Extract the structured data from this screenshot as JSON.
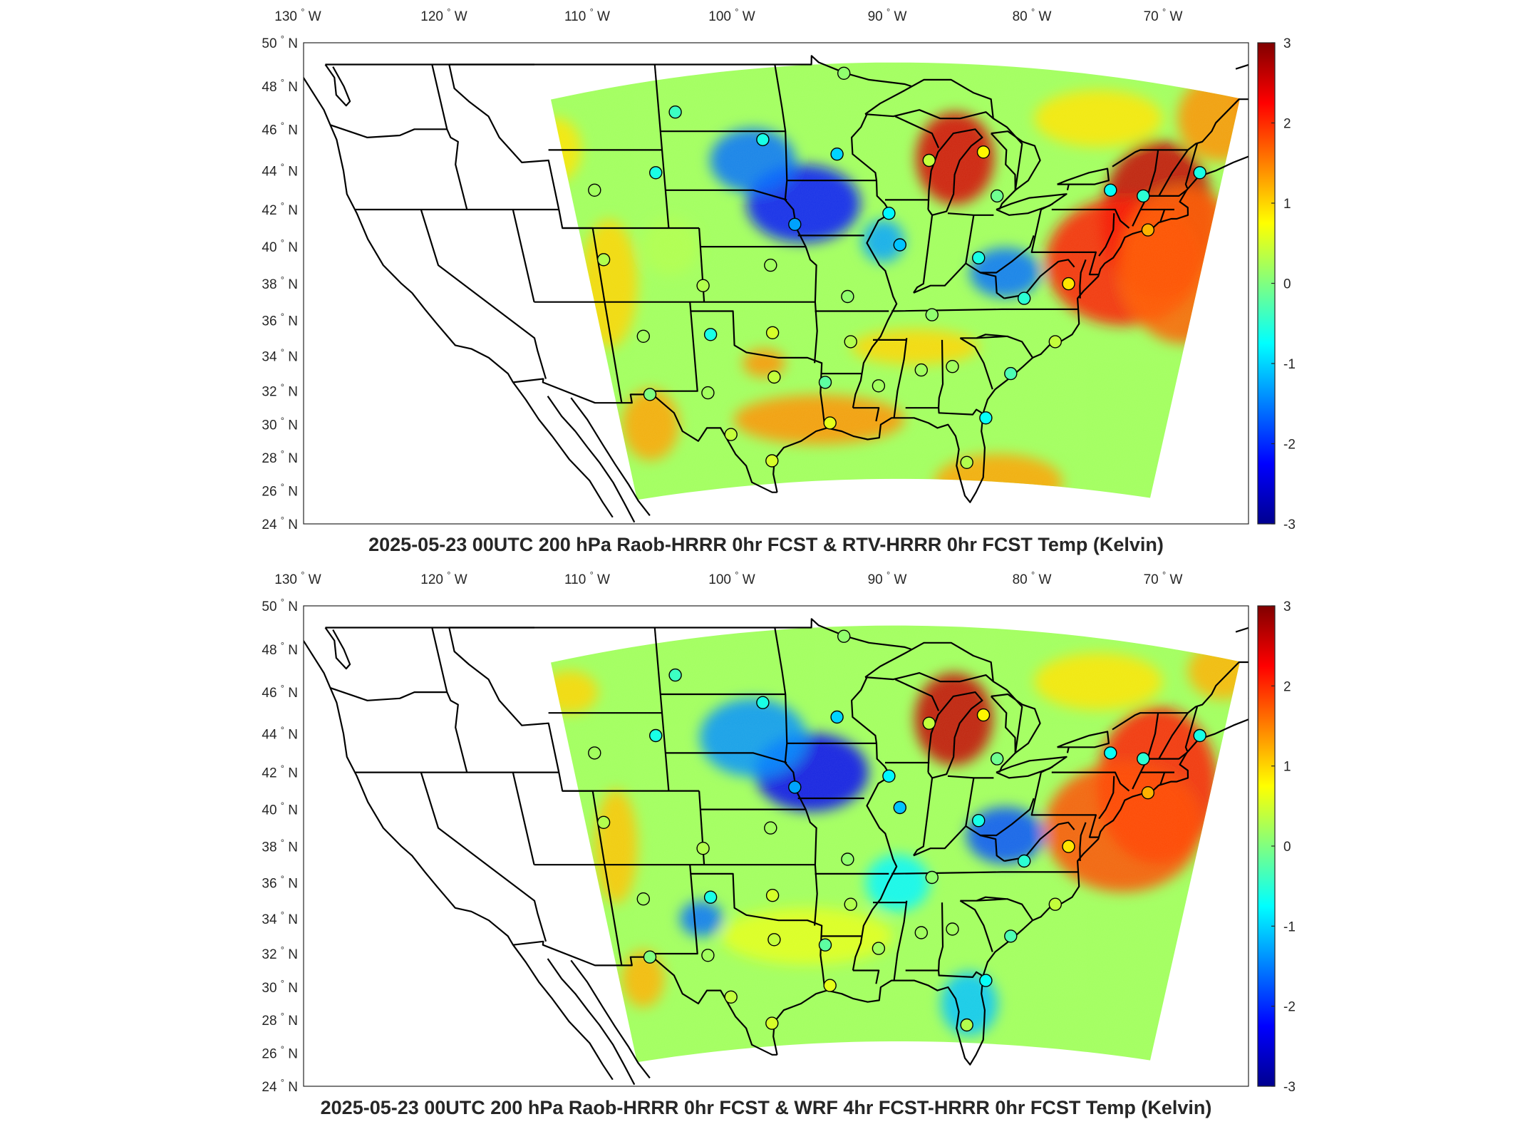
{
  "panels": [
    {
      "id": "top",
      "title": "2025-05-23 00UTC 200 hPa Raob-HRRR 0hr FCST & RTV-HRRR 0hr FCST Temp (Kelvin)",
      "field_pattern": "rtv",
      "stations": [
        {
          "lon": -93.4,
          "lat": 48.6,
          "value": 0.1
        },
        {
          "lon": -103.0,
          "lat": 46.8,
          "value": -0.4
        },
        {
          "lon": -97.9,
          "lat": 45.5,
          "value": -0.6
        },
        {
          "lon": -93.6,
          "lat": 44.8,
          "value": -1.0
        },
        {
          "lon": -88.1,
          "lat": 44.5,
          "value": 0.4
        },
        {
          "lon": -84.8,
          "lat": 44.9,
          "value": 0.8
        },
        {
          "lon": -104.5,
          "lat": 43.9,
          "value": -0.6
        },
        {
          "lon": -108.5,
          "lat": 43.0,
          "value": 0.2
        },
        {
          "lon": -96.0,
          "lat": 41.2,
          "value": -1.3
        },
        {
          "lon": -90.3,
          "lat": 41.8,
          "value": -0.8
        },
        {
          "lon": -83.5,
          "lat": 42.7,
          "value": -0.1
        },
        {
          "lon": -76.0,
          "lat": 43.0,
          "value": -0.7
        },
        {
          "lon": -73.6,
          "lat": 42.7,
          "value": -0.5
        },
        {
          "lon": -70.2,
          "lat": 43.9,
          "value": -0.6
        },
        {
          "lon": -72.5,
          "lat": 40.9,
          "value": 1.2
        },
        {
          "lon": -89.4,
          "lat": 40.1,
          "value": -1.1
        },
        {
          "lon": -84.0,
          "lat": 39.4,
          "value": -0.6
        },
        {
          "lon": -80.3,
          "lat": 37.2,
          "value": -0.5
        },
        {
          "lon": -77.2,
          "lat": 38.0,
          "value": 0.9
        },
        {
          "lon": -86.6,
          "lat": 36.3,
          "value": 0.1
        },
        {
          "lon": -92.5,
          "lat": 37.3,
          "value": 0.1
        },
        {
          "lon": -97.5,
          "lat": 39.0,
          "value": 0.2
        },
        {
          "lon": -102.0,
          "lat": 37.9,
          "value": 0.3
        },
        {
          "lon": -108.6,
          "lat": 39.3,
          "value": 0.3
        },
        {
          "lon": -106.6,
          "lat": 35.1,
          "value": 0.2
        },
        {
          "lon": -101.7,
          "lat": 35.2,
          "value": -0.6
        },
        {
          "lon": -97.4,
          "lat": 35.3,
          "value": 0.5
        },
        {
          "lon": -92.1,
          "lat": 34.8,
          "value": 0.3
        },
        {
          "lon": -86.8,
          "lat": 33.2,
          "value": 0.2
        },
        {
          "lon": -84.5,
          "lat": 33.4,
          "value": 0.2
        },
        {
          "lon": -80.0,
          "lat": 33.0,
          "value": -0.3
        },
        {
          "lon": -77.0,
          "lat": 34.8,
          "value": 0.4
        },
        {
          "lon": -89.9,
          "lat": 32.3,
          "value": 0.2
        },
        {
          "lon": -93.7,
          "lat": 32.5,
          "value": -0.2
        },
        {
          "lon": -97.3,
          "lat": 32.8,
          "value": 0.4
        },
        {
          "lon": -102.2,
          "lat": 31.9,
          "value": 0.2
        },
        {
          "lon": -106.7,
          "lat": 31.8,
          "value": 0.0
        },
        {
          "lon": -93.2,
          "lat": 30.1,
          "value": 0.6
        },
        {
          "lon": -100.6,
          "lat": 29.4,
          "value": 0.4
        },
        {
          "lon": -97.5,
          "lat": 27.8,
          "value": 0.5
        },
        {
          "lon": -81.1,
          "lat": 30.4,
          "value": -0.7
        },
        {
          "lon": -81.8,
          "lat": 27.7,
          "value": 0.3
        }
      ]
    },
    {
      "id": "bottom",
      "title": "2025-05-23 00UTC 200 hPa Raob-HRRR 0hr FCST & WRF 4hr FCST-HRRR 0hr FCST Temp (Kelvin)",
      "field_pattern": "wrf",
      "stations": [
        {
          "lon": -93.4,
          "lat": 48.6,
          "value": 0.1
        },
        {
          "lon": -103.0,
          "lat": 46.8,
          "value": -0.4
        },
        {
          "lon": -97.9,
          "lat": 45.5,
          "value": -0.6
        },
        {
          "lon": -93.6,
          "lat": 44.8,
          "value": -1.0
        },
        {
          "lon": -88.1,
          "lat": 44.5,
          "value": 0.4
        },
        {
          "lon": -84.8,
          "lat": 44.9,
          "value": 0.8
        },
        {
          "lon": -104.5,
          "lat": 43.9,
          "value": -0.6
        },
        {
          "lon": -108.5,
          "lat": 43.0,
          "value": 0.2
        },
        {
          "lon": -96.0,
          "lat": 41.2,
          "value": -1.3
        },
        {
          "lon": -90.3,
          "lat": 41.8,
          "value": -0.8
        },
        {
          "lon": -83.5,
          "lat": 42.7,
          "value": -0.1
        },
        {
          "lon": -76.0,
          "lat": 43.0,
          "value": -0.7
        },
        {
          "lon": -73.6,
          "lat": 42.7,
          "value": -0.5
        },
        {
          "lon": -70.2,
          "lat": 43.9,
          "value": -0.6
        },
        {
          "lon": -72.5,
          "lat": 40.9,
          "value": 1.2
        },
        {
          "lon": -89.4,
          "lat": 40.1,
          "value": -1.1
        },
        {
          "lon": -84.0,
          "lat": 39.4,
          "value": -0.6
        },
        {
          "lon": -80.3,
          "lat": 37.2,
          "value": -0.5
        },
        {
          "lon": -77.2,
          "lat": 38.0,
          "value": 0.9
        },
        {
          "lon": -86.6,
          "lat": 36.3,
          "value": 0.1
        },
        {
          "lon": -92.5,
          "lat": 37.3,
          "value": 0.1
        },
        {
          "lon": -97.5,
          "lat": 39.0,
          "value": 0.2
        },
        {
          "lon": -102.0,
          "lat": 37.9,
          "value": 0.3
        },
        {
          "lon": -108.6,
          "lat": 39.3,
          "value": 0.3
        },
        {
          "lon": -106.6,
          "lat": 35.1,
          "value": 0.2
        },
        {
          "lon": -101.7,
          "lat": 35.2,
          "value": -0.6
        },
        {
          "lon": -97.4,
          "lat": 35.3,
          "value": 0.5
        },
        {
          "lon": -92.1,
          "lat": 34.8,
          "value": 0.3
        },
        {
          "lon": -86.8,
          "lat": 33.2,
          "value": 0.2
        },
        {
          "lon": -84.5,
          "lat": 33.4,
          "value": 0.2
        },
        {
          "lon": -80.0,
          "lat": 33.0,
          "value": -0.3
        },
        {
          "lon": -77.0,
          "lat": 34.8,
          "value": 0.4
        },
        {
          "lon": -89.9,
          "lat": 32.3,
          "value": 0.2
        },
        {
          "lon": -93.7,
          "lat": 32.5,
          "value": -0.2
        },
        {
          "lon": -97.3,
          "lat": 32.8,
          "value": 0.4
        },
        {
          "lon": -102.2,
          "lat": 31.9,
          "value": 0.2
        },
        {
          "lon": -106.7,
          "lat": 31.8,
          "value": 0.0
        },
        {
          "lon": -93.2,
          "lat": 30.1,
          "value": 0.6
        },
        {
          "lon": -100.6,
          "lat": 29.4,
          "value": 0.4
        },
        {
          "lon": -97.5,
          "lat": 27.8,
          "value": 0.5
        },
        {
          "lon": -81.1,
          "lat": 30.4,
          "value": -0.7
        },
        {
          "lon": -81.8,
          "lat": 27.7,
          "value": 0.3
        }
      ]
    }
  ],
  "lon_ticks": [
    {
      "value": -130,
      "label": "130",
      "dir": "W"
    },
    {
      "value": -120,
      "label": "120",
      "dir": "W"
    },
    {
      "value": -110,
      "label": "110",
      "dir": "W"
    },
    {
      "value": -100,
      "label": "100",
      "dir": "W"
    },
    {
      "value": -90,
      "label": "90",
      "dir": "W"
    },
    {
      "value": -80,
      "label": "80",
      "dir": "W"
    },
    {
      "value": -70,
      "label": "70",
      "dir": "W"
    }
  ],
  "lat_ticks": [
    {
      "value": 50,
      "label": "50",
      "dir": "N"
    },
    {
      "value": 48,
      "label": "48",
      "dir": "N"
    },
    {
      "value": 46,
      "label": "46",
      "dir": "N"
    },
    {
      "value": 44,
      "label": "44",
      "dir": "N"
    },
    {
      "value": 42,
      "label": "42",
      "dir": "N"
    },
    {
      "value": 40,
      "label": "40",
      "dir": "N"
    },
    {
      "value": 38,
      "label": "38",
      "dir": "N"
    },
    {
      "value": 36,
      "label": "36",
      "dir": "N"
    },
    {
      "value": 34,
      "label": "34",
      "dir": "N"
    },
    {
      "value": 32,
      "label": "32",
      "dir": "N"
    },
    {
      "value": 30,
      "label": "30",
      "dir": "N"
    },
    {
      "value": 28,
      "label": "28",
      "dir": "N"
    },
    {
      "value": 26,
      "label": "26",
      "dir": "N"
    },
    {
      "value": 24,
      "label": "24",
      "dir": "N"
    }
  ],
  "degree_symbol": "°",
  "colorbar": {
    "min": -3,
    "max": 3,
    "ticks": [
      {
        "value": 3,
        "label": "3"
      },
      {
        "value": 2,
        "label": "2"
      },
      {
        "value": 1,
        "label": "1"
      },
      {
        "value": 0,
        "label": "0"
      },
      {
        "value": -1,
        "label": "-1"
      },
      {
        "value": -2,
        "label": "-2"
      },
      {
        "value": -3,
        "label": "-3"
      }
    ],
    "colormap": "jet"
  }
}
